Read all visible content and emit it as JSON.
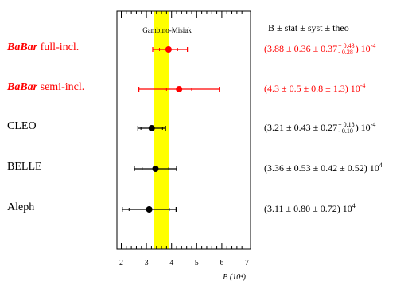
{
  "chart_data": {
    "type": "scatter",
    "orientation": "horizontal-error-bars",
    "band": {
      "label": "Gambino-Misiak",
      "range": [
        3.3,
        3.9
      ],
      "color": "#ffff00"
    },
    "xlim": [
      1.8,
      7.2
    ],
    "xticks": [
      "2",
      "3",
      "4",
      "5",
      "6",
      "7"
    ],
    "xlabel": "B (10⁴)",
    "header": "B  ± stat ± syst ± theo",
    "points": [
      {
        "exp_prefix": "BaBar",
        "exp_suffix": " full-incl.",
        "value": 3.88,
        "err_inner": 0.36,
        "err_outer_minus": 0.63,
        "err_outer_plus": 0.75,
        "color": "#ff0000",
        "result": {
          "lead": "(3.88 ± 0.36 ± 0.37",
          "sup_plus": "+ 0.43",
          "sub_minus": "- 0.28",
          "tail": ") 10",
          "exp": "-4"
        }
      },
      {
        "exp_prefix": "BaBar",
        "exp_suffix": " semi-incl.",
        "value": 4.3,
        "err_inner": 0.5,
        "err_outer_minus": 1.6,
        "err_outer_plus": 1.6,
        "color": "#ff0000",
        "result": {
          "text": "(4.3 ± 0.5 ± 0.8 ± 1.3) 10",
          "exp": "-4"
        }
      },
      {
        "exp_prefix": "",
        "exp_suffix": "CLEO",
        "value": 3.21,
        "err_inner": 0.43,
        "err_outer_minus": 0.55,
        "err_outer_plus": 0.55,
        "color": "#000000",
        "result": {
          "lead": "(3.21 ± 0.43 ± 0.27",
          "sup_plus": "+ 0.18",
          "sub_minus": "- 0.10",
          "tail": ") 10",
          "exp": "-4"
        }
      },
      {
        "exp_prefix": "",
        "exp_suffix": "BELLE",
        "value": 3.36,
        "err_inner": 0.53,
        "err_outer_minus": 0.84,
        "err_outer_plus": 0.84,
        "color": "#000000",
        "result": {
          "text": "(3.36 ± 0.53 ± 0.42 ± 0.52) 10",
          "exp": "4"
        }
      },
      {
        "exp_prefix": "",
        "exp_suffix": "Aleph",
        "value": 3.11,
        "err_inner": 0.8,
        "err_outer_minus": 1.07,
        "err_outer_plus": 1.07,
        "color": "#000000",
        "result": {
          "text": "(3.11 ± 0.80 ± 0.72) 10",
          "exp": "4"
        }
      }
    ]
  }
}
